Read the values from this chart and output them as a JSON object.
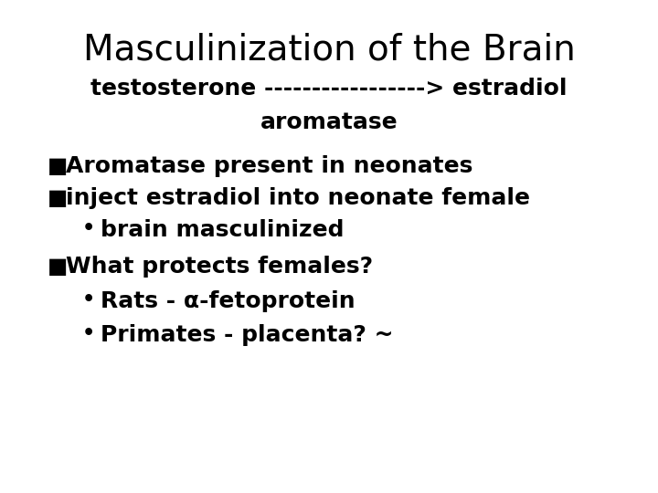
{
  "title": "Masculinization of the Brain",
  "title_fontsize": 28,
  "title_fontweight": "normal",
  "bg_color": "#ffffff",
  "text_color": "#000000",
  "arrow_line": "testosterone -----------------> estradiol",
  "arrow_line_fontsize": 18,
  "aromatase_line": "aromatase",
  "aromatase_fontsize": 18,
  "body_fontsize": 18,
  "bullet_square": "■",
  "bullet_circle": "•",
  "items": [
    {
      "level": 0,
      "text": "Aromatase present in neonates"
    },
    {
      "level": 0,
      "text": "inject estradiol into neonate female"
    },
    {
      "level": 1,
      "text": "brain masculinized"
    },
    {
      "level": 0,
      "text": "What protects females?"
    },
    {
      "level": 1,
      "text": "Rats - α-fetoprotein"
    },
    {
      "level": 1,
      "text": "Primates - placenta? ~"
    }
  ]
}
